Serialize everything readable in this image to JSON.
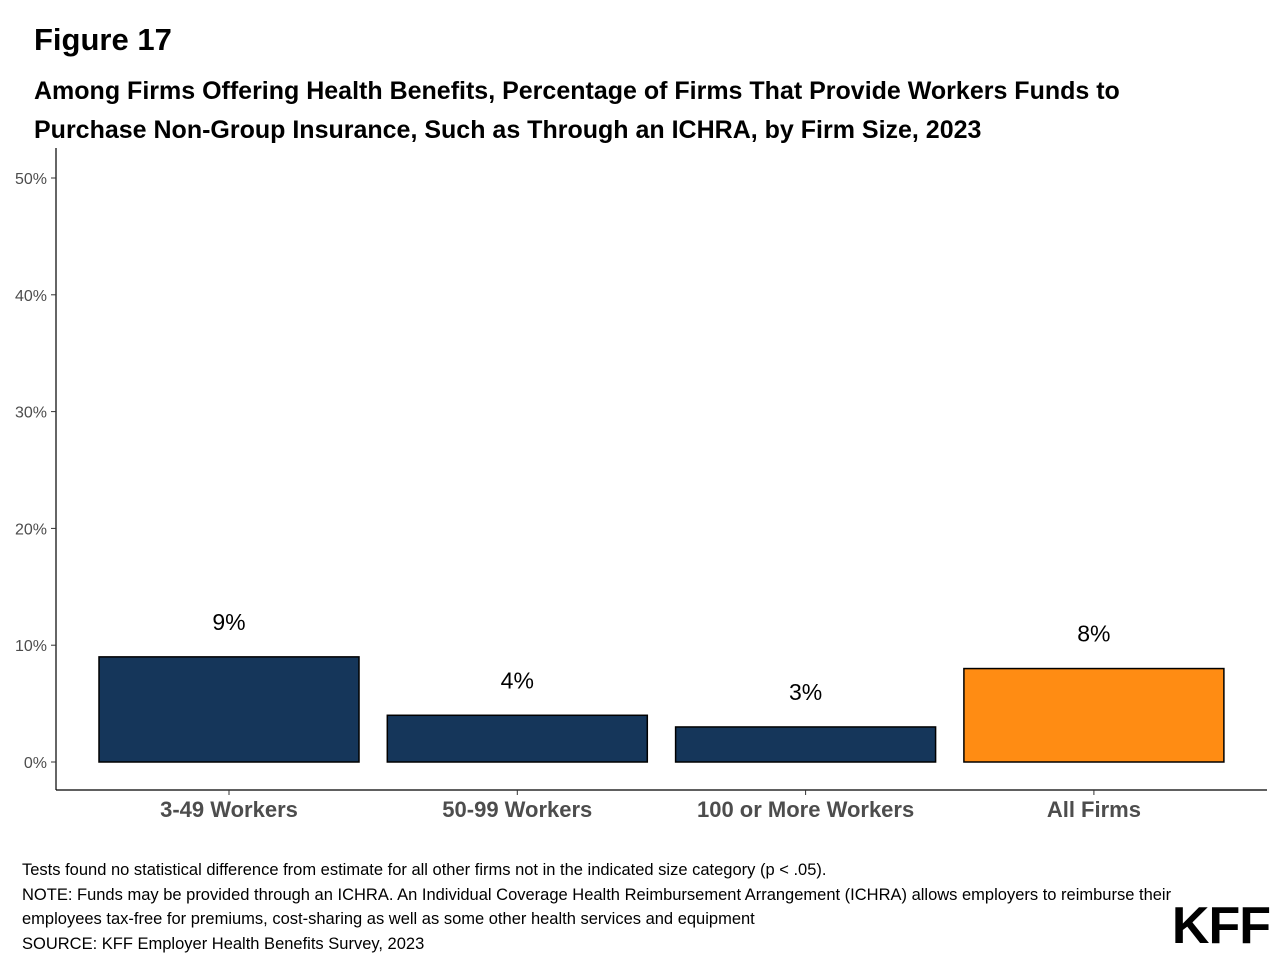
{
  "header": {
    "figure_label": "Figure 17",
    "title": "Among Firms Offering Health Benefits, Percentage of Firms That Provide Workers Funds to Purchase Non-Group Insurance, Such as Through an ICHRA, by Firm Size, 2023"
  },
  "chart_data": {
    "type": "bar",
    "categories": [
      "3-49 Workers",
      "50-99 Workers",
      "100 or More Workers",
      "All Firms"
    ],
    "values": [
      9,
      4,
      3,
      8
    ],
    "data_labels": [
      "9%",
      "4%",
      "3%",
      "8%"
    ],
    "bar_colors": [
      "#15365a",
      "#15365a",
      "#15365a",
      "#ff8c13"
    ],
    "ylim": [
      0,
      50
    ],
    "yticks": [
      0,
      10,
      20,
      30,
      40,
      50
    ],
    "ytick_labels": [
      "0%",
      "10%",
      "20%",
      "30%",
      "40%",
      "50%"
    ],
    "xlabel": "",
    "ylabel": "",
    "grid": false
  },
  "notes": {
    "line1": "Tests found no statistical difference from estimate for all other firms not in the indicated size category (p < .05).",
    "line2": "NOTE: Funds may be provided through an ICHRA. An Individual Coverage Health Reimbursement Arrangement (ICHRA) allows employers to reimburse their employees tax-free for premiums, cost-sharing as well as some other health services and equipment",
    "line3": "SOURCE: KFF Employer Health Benefits Survey, 2023"
  },
  "logo": {
    "text": "KFF"
  }
}
